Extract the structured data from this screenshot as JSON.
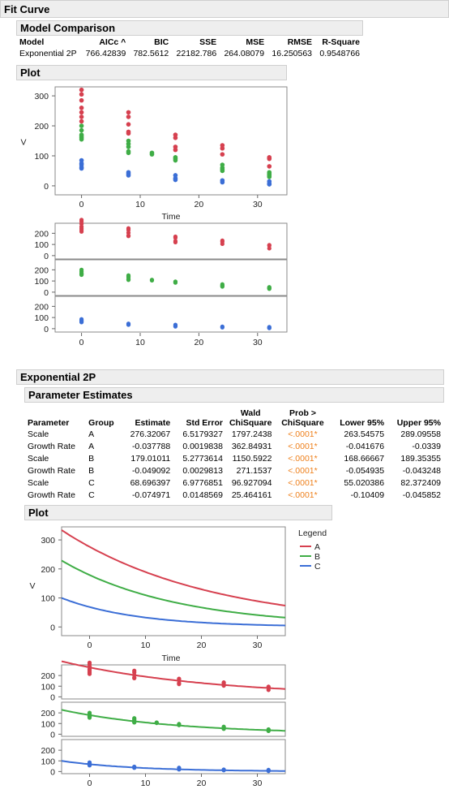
{
  "title": "Fit Curve",
  "model_comparison": {
    "title": "Model Comparison",
    "columns": [
      "Model",
      "AICc",
      "BIC",
      "SSE",
      "MSE",
      "RMSE",
      "R-Square"
    ],
    "sort_indicator": "^",
    "rows": [
      [
        "Exponential 2P",
        "766.42839",
        "782.5612",
        "22182.786",
        "264.08079",
        "16.250563",
        "0.9548766"
      ]
    ]
  },
  "plot1": {
    "title": "Plot",
    "ylabel": "V",
    "xlabel": "Time",
    "yticks": [
      "300",
      "200",
      "100",
      "0"
    ],
    "xticks": [
      "0",
      "10",
      "20",
      "30"
    ],
    "panel_ticks": [
      "200",
      "100",
      "0"
    ]
  },
  "fit": {
    "title": "Exponential 2P",
    "parameter_estimates": {
      "title": "Parameter Estimates",
      "columns": [
        "Parameter",
        "Group",
        "Estimate",
        "Std Error",
        "Wald ChiSquare",
        "Prob > ChiSquare",
        "Lower 95%",
        "Upper 95%"
      ],
      "rows": [
        [
          "Scale",
          "A",
          "276.32067",
          "6.5179327",
          "1797.2438",
          "<.0001*",
          "263.54575",
          "289.09558"
        ],
        [
          "Growth Rate",
          "A",
          "-0.037788",
          "0.0019838",
          "362.84931",
          "<.0001*",
          "-0.041676",
          "-0.0339"
        ],
        [
          "Scale",
          "B",
          "179.01011",
          "5.2773614",
          "1150.5922",
          "<.0001*",
          "168.66667",
          "189.35355"
        ],
        [
          "Growth Rate",
          "B",
          "-0.049092",
          "0.0029813",
          "271.1537",
          "<.0001*",
          "-0.054935",
          "-0.043248"
        ],
        [
          "Scale",
          "C",
          "68.696397",
          "6.9776851",
          "96.927094",
          "<.0001*",
          "55.020386",
          "82.372409"
        ],
        [
          "Growth Rate",
          "C",
          "-0.074971",
          "0.0148569",
          "25.464161",
          "<.0001*",
          "-0.10409",
          "-0.045852"
        ]
      ]
    },
    "plot": {
      "title": "Plot",
      "ylabel": "V",
      "xlabel": "Time",
      "legend_title": "Legend",
      "yticks": [
        "300",
        "200",
        "100",
        "0"
      ],
      "xticks": [
        "0",
        "10",
        "20",
        "30"
      ],
      "panel_ticks": [
        "200",
        "100",
        "0"
      ]
    }
  },
  "colors": {
    "A": "#d6404f",
    "B": "#3fad46",
    "C": "#3b6ed6",
    "pvalue": "#ee7f1a"
  },
  "chart_data": [
    {
      "type": "scatter",
      "title": "",
      "xlabel": "Time",
      "ylabel": "V",
      "xlim": [
        -4.5,
        35
      ],
      "ylim": [
        -30,
        330
      ],
      "series": [
        {
          "name": "A",
          "points": [
            [
              0,
              320
            ],
            [
              0,
              305
            ],
            [
              0,
              285
            ],
            [
              0,
              260
            ],
            [
              0,
              245
            ],
            [
              0,
              230
            ],
            [
              0,
              215
            ],
            [
              8,
              245
            ],
            [
              8,
              230
            ],
            [
              8,
              205
            ],
            [
              8,
              180
            ],
            [
              8,
              175
            ],
            [
              16,
              170
            ],
            [
              16,
              160
            ],
            [
              16,
              130
            ],
            [
              16,
              120
            ],
            [
              24,
              135
            ],
            [
              24,
              125
            ],
            [
              24,
              105
            ],
            [
              32,
              95
            ],
            [
              32,
              90
            ],
            [
              32,
              65
            ]
          ]
        },
        {
          "name": "B",
          "points": [
            [
              0,
              200
            ],
            [
              0,
              185
            ],
            [
              0,
              170
            ],
            [
              0,
              165
            ],
            [
              0,
              160
            ],
            [
              0,
              155
            ],
            [
              8,
              150
            ],
            [
              8,
              140
            ],
            [
              8,
              130
            ],
            [
              8,
              115
            ],
            [
              8,
              110
            ],
            [
              12,
              110
            ],
            [
              12,
              105
            ],
            [
              16,
              95
            ],
            [
              16,
              90
            ],
            [
              16,
              85
            ],
            [
              24,
              70
            ],
            [
              24,
              60
            ],
            [
              24,
              55
            ],
            [
              24,
              50
            ],
            [
              32,
              45
            ],
            [
              32,
              40
            ],
            [
              32,
              35
            ],
            [
              32,
              30
            ]
          ]
        },
        {
          "name": "C",
          "points": [
            [
              0,
              85
            ],
            [
              0,
              75
            ],
            [
              0,
              70
            ],
            [
              0,
              62
            ],
            [
              0,
              58
            ],
            [
              8,
              45
            ],
            [
              8,
              40
            ],
            [
              8,
              35
            ],
            [
              16,
              35
            ],
            [
              16,
              25
            ],
            [
              16,
              20
            ],
            [
              24,
              18
            ],
            [
              24,
              12
            ],
            [
              32,
              15
            ],
            [
              32,
              8
            ],
            [
              32,
              5
            ]
          ]
        }
      ]
    },
    {
      "type": "line",
      "title": "",
      "xlabel": "Time",
      "ylabel": "V",
      "xlim": [
        -5,
        35
      ],
      "ylim": [
        -30,
        345
      ],
      "legend": "right",
      "series": [
        {
          "name": "A",
          "scale": 276.32067,
          "rate": -0.037788
        },
        {
          "name": "B",
          "scale": 179.01011,
          "rate": -0.049092
        },
        {
          "name": "C",
          "scale": 68.696397,
          "rate": -0.074971
        }
      ]
    }
  ]
}
